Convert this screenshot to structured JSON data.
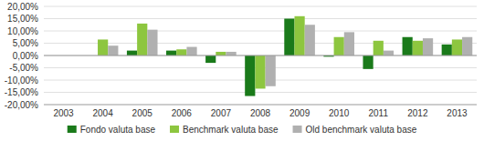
{
  "chart_data": {
    "type": "bar",
    "categories": [
      "2003",
      "2004",
      "2005",
      "2006",
      "2007",
      "2008",
      "2009",
      "2010",
      "2011",
      "2012",
      "2013"
    ],
    "series": [
      {
        "name": "Fondo valuta base",
        "color": "#1a7a1a",
        "values": [
          0.0,
          0.0,
          2.0,
          2.0,
          -3.0,
          -16.5,
          15.0,
          -0.5,
          -5.5,
          7.5,
          4.5
        ]
      },
      {
        "name": "Benchmark valuta base",
        "color": "#8dc63f",
        "values": [
          0.0,
          6.5,
          13.0,
          2.5,
          1.5,
          -13.5,
          16.0,
          7.5,
          6.0,
          6.0,
          6.5
        ]
      },
      {
        "name": "Old benchmark valuta base",
        "color": "#b0b0b0",
        "values": [
          0.0,
          4.0,
          10.5,
          3.5,
          1.5,
          -12.5,
          12.5,
          9.5,
          2.0,
          7.0,
          7.5
        ]
      }
    ],
    "ylim": [
      -20,
      20
    ],
    "yticks": [
      {
        "value": -20,
        "label": "-20,00%"
      },
      {
        "value": -15,
        "label": "-15,00%"
      },
      {
        "value": -10,
        "label": "-10,00%"
      },
      {
        "value": -5,
        "label": "-5,00%"
      },
      {
        "value": 0,
        "label": "0,00%"
      },
      {
        "value": 5,
        "label": "5,00%"
      },
      {
        "value": 10,
        "label": "10,00%"
      },
      {
        "value": 15,
        "label": "15,00%"
      },
      {
        "value": 20,
        "label": "20,00%"
      }
    ],
    "grid": true,
    "legend": "bottom"
  }
}
